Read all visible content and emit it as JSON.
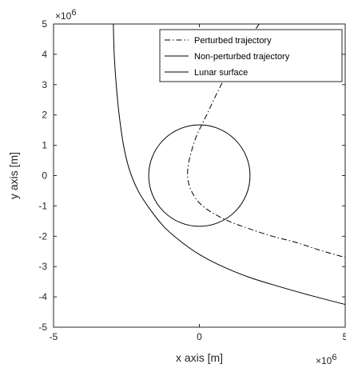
{
  "chart_data": {
    "type": "line",
    "xlabel": "x axis [m]",
    "ylabel": "y axis [m]",
    "x_multiplier": "×10",
    "x_exponent": "6",
    "y_multiplier": "×10",
    "y_exponent": "6",
    "xlim": [
      -5,
      5
    ],
    "ylim": [
      -5,
      5
    ],
    "xticks": [
      "-5",
      "0",
      "5"
    ],
    "yticks": [
      "5",
      "4",
      "3",
      "2",
      "1",
      "0",
      "-1",
      "-2",
      "-3",
      "-4",
      "-5"
    ],
    "grid": false,
    "legend_position": "top-right",
    "series": [
      {
        "name": "Perturbed trajectory",
        "style": "dash-dot",
        "color": "#000000",
        "x": [
          2.05,
          1.35,
          0.75,
          0.25,
          -0.1,
          -0.3,
          -0.4,
          -0.38,
          -0.25,
          0.0,
          0.4,
          1.0,
          1.7,
          2.5,
          3.3,
          4.1,
          5.0
        ],
        "y": [
          5.0,
          4.0,
          3.0,
          2.0,
          1.3,
          0.7,
          0.2,
          -0.2,
          -0.55,
          -0.9,
          -1.2,
          -1.5,
          -1.75,
          -2.0,
          -2.2,
          -2.45,
          -2.7
        ]
      },
      {
        "name": "Non-perturbed trajectory",
        "style": "solid",
        "color": "#000000",
        "x": [
          -2.95,
          -2.92,
          -2.85,
          -2.75,
          -2.6,
          -2.4,
          -2.1,
          -1.7,
          -1.2,
          -0.6,
          0.0,
          0.8,
          1.7,
          2.7,
          3.8,
          5.0
        ],
        "y": [
          5.0,
          4.0,
          3.0,
          2.0,
          1.0,
          0.2,
          -0.5,
          -1.1,
          -1.7,
          -2.2,
          -2.6,
          -3.0,
          -3.35,
          -3.65,
          -3.95,
          -4.25
        ]
      },
      {
        "name": "Lunar surface",
        "style": "solid",
        "color": "#000000",
        "shape": "circle",
        "center": [
          0,
          0
        ],
        "radius": 1.737
      }
    ]
  }
}
